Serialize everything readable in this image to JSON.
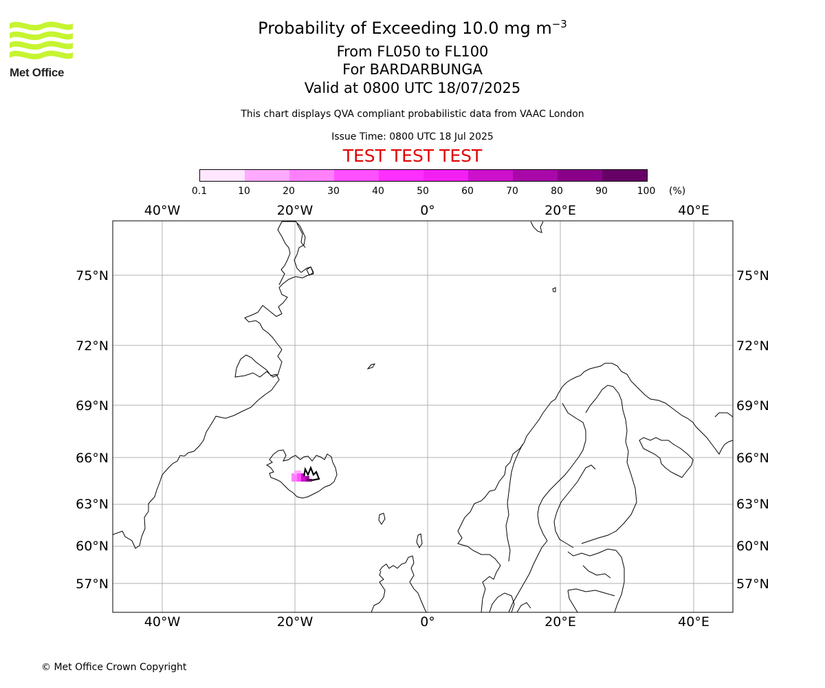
{
  "logo": {
    "text": "Met Office",
    "brand_color": "#c6f431"
  },
  "title": {
    "line1": "Probability of Exceeding 10.0 mg m",
    "line1_sup": "−3",
    "line2": "From FL050 to FL100",
    "line3": "For BARDARBUNGA",
    "line4": "Valid at 0800 UTC 18/07/2025"
  },
  "subtitle": "This chart displays QVA compliant probabilistic data from VAAC London",
  "issue_time": "Issue Time: 0800 UTC 18 Jul 2025",
  "test_banner": "TEST TEST TEST",
  "colorbar": {
    "ticks": [
      "0.1",
      "10",
      "20",
      "30",
      "40",
      "50",
      "60",
      "70",
      "80",
      "90",
      "100"
    ],
    "unit": "(%)",
    "colors": [
      "#ffe6ff",
      "#ffc8ff",
      "#ffaaff",
      "#ff80ff",
      "#ff50ff",
      "#ff2fff",
      "#f21ff2",
      "#cc10cc",
      "#a808a8",
      "#8a008a",
      "#660066"
    ]
  },
  "map": {
    "lon_labels": [
      "40°W",
      "20°W",
      "0°",
      "20°E",
      "40°E"
    ],
    "lat_labels": [
      "75°N",
      "72°N",
      "69°N",
      "66°N",
      "63°N",
      "60°N",
      "57°N"
    ],
    "ash_colors": {
      "low": "#ffaaff",
      "mid": "#ff50ff",
      "high": "#cc10cc",
      "max": "#8a008a"
    }
  },
  "copyright": "© Met Office Crown Copyright"
}
